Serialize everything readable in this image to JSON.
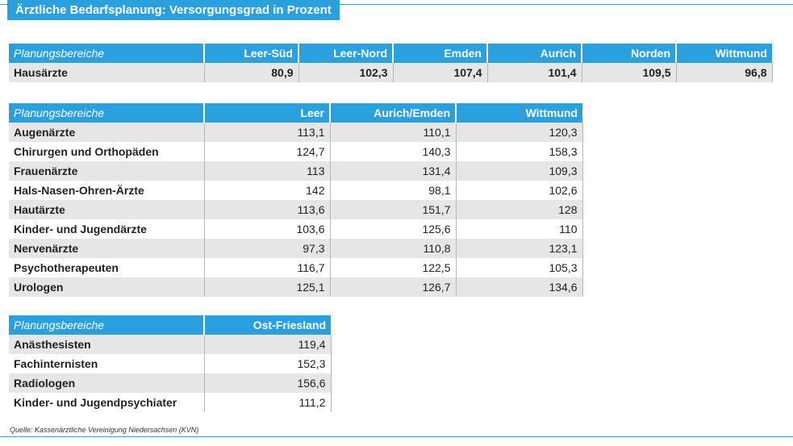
{
  "title": "Ärztliche Bedarfsplanung: Versorgungsgrad in Prozent",
  "source": "Quelle: Kassenärztliche Vereinigung Niedersachsen (KVN)",
  "chart_data": [
    {
      "type": "table",
      "row_header": "Planungsbereiche",
      "columns": [
        "Leer-Süd",
        "Leer-Nord",
        "Emden",
        "Aurich",
        "Norden",
        "Wittmund"
      ],
      "rows": [
        {
          "label": "Hausärzte",
          "values": [
            "80,9",
            "102,3",
            "107,4",
            "101,4",
            "109,5",
            "96,8"
          ]
        }
      ]
    },
    {
      "type": "table",
      "row_header": "Planungsbereiche",
      "columns": [
        "Leer",
        "Aurich/Emden",
        "Wittmund"
      ],
      "rows": [
        {
          "label": "Augenärzte",
          "values": [
            "113,1",
            "110,1",
            "120,3"
          ]
        },
        {
          "label": "Chirurgen und Orthopäden",
          "values": [
            "124,7",
            "140,3",
            "158,3"
          ]
        },
        {
          "label": "Frauenärzte",
          "values": [
            "113",
            "131,4",
            "109,3"
          ]
        },
        {
          "label": "Hals-Nasen-Ohren-Ärzte",
          "values": [
            "142",
            "98,1",
            "102,6"
          ]
        },
        {
          "label": "Hautärzte",
          "values": [
            "113,6",
            "151,7",
            "128"
          ]
        },
        {
          "label": "Kinder- und Jugendärzte",
          "values": [
            "103,6",
            "125,6",
            "110"
          ]
        },
        {
          "label": "Nervenärzte",
          "values": [
            "97,3",
            "110,8",
            "123,1"
          ]
        },
        {
          "label": "Psychotherapeuten",
          "values": [
            "116,7",
            "122,5",
            "105,3"
          ]
        },
        {
          "label": "Urologen",
          "values": [
            "125,1",
            "126,7",
            "134,6"
          ]
        }
      ]
    },
    {
      "type": "table",
      "row_header": "Planungsbereiche",
      "columns": [
        "Ost-Friesland"
      ],
      "rows": [
        {
          "label": "Anästhesisten",
          "values": [
            "119,4"
          ]
        },
        {
          "label": "Fachinternisten",
          "values": [
            "152,3"
          ]
        },
        {
          "label": "Radiologen",
          "values": [
            "156,6"
          ]
        },
        {
          "label": "Kinder- und Jugendpsychiater",
          "values": [
            "111,2"
          ]
        }
      ]
    }
  ]
}
